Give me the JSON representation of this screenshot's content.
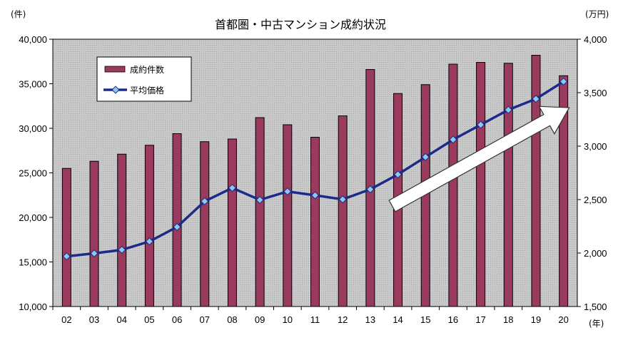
{
  "chart_data": {
    "type": "bar",
    "title": "首都圏・中古マンション成約状況",
    "y_left_unit": "(件)",
    "y_right_unit": "(万円)",
    "x_unit": "(年)",
    "categories": [
      "02",
      "03",
      "04",
      "05",
      "06",
      "07",
      "08",
      "09",
      "10",
      "11",
      "12",
      "13",
      "14",
      "15",
      "16",
      "17",
      "18",
      "19",
      "20"
    ],
    "ylim_left": [
      10000,
      40000
    ],
    "ylim_right": [
      1500,
      4000
    ],
    "yticks_left": [
      "10,000",
      "15,000",
      "20,000",
      "25,000",
      "30,000",
      "35,000",
      "40,000"
    ],
    "yticks_right": [
      "1,500",
      "2,000",
      "2,500",
      "3,000",
      "3,500",
      "4,000"
    ],
    "series": [
      {
        "name": "成約件数",
        "type": "bar",
        "axis": "left",
        "values": [
          25500,
          26300,
          27100,
          28100,
          29400,
          28500,
          28800,
          31200,
          30400,
          29000,
          31400,
          36600,
          33900,
          34900,
          37200,
          37400,
          37300,
          38200,
          35900
        ]
      },
      {
        "name": "平均価格",
        "type": "line",
        "axis": "right",
        "values": [
          1969,
          1997,
          2030,
          2108,
          2244,
          2484,
          2609,
          2497,
          2576,
          2540,
          2502,
          2596,
          2735,
          2898,
          3061,
          3200,
          3339,
          3442,
          3604
        ]
      }
    ],
    "colors": {
      "bar": "#9b3a5f",
      "line": "#1c2a8a",
      "marker": "#8ec8ec",
      "plot_bg": "#c8c8c8",
      "arrow": "#ffffff"
    },
    "grid": false,
    "legend": "top-left inside plot",
    "annotation": "upward arrow"
  }
}
